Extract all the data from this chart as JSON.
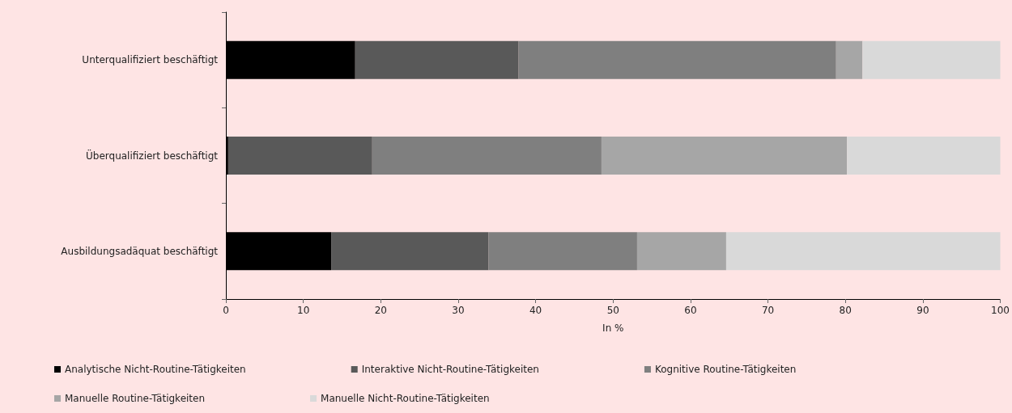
{
  "chart_data": {
    "type": "bar",
    "orientation": "horizontal",
    "stacked": true,
    "xlabel": "In %",
    "categories": [
      "Unterqualifiziert beschäftigt",
      "Überqualifiziert beschäftigt",
      "Ausbildungsadäquat beschäftigt"
    ],
    "series": [
      {
        "name": "Analytische Nicht-Routine-Tätigkeiten",
        "color": "#000000",
        "values": [
          16.7,
          0.3,
          13.6
        ]
      },
      {
        "name": "Interaktive Nicht-Routine-Tätigkeiten",
        "color": "#595959",
        "values": [
          21.1,
          18.6,
          20.3
        ]
      },
      {
        "name": "Kognitive Routine-Tätigkeiten",
        "color": "#7f7f7f",
        "values": [
          41.0,
          29.6,
          19.2
        ]
      },
      {
        "name": "Manuelle Routine-Tätigkeiten",
        "color": "#a6a6a6",
        "values": [
          3.4,
          31.7,
          11.5
        ]
      },
      {
        "name": "Manuelle Nicht-Routine-Tätigkeiten",
        "color": "#d9d9d9",
        "values": [
          17.8,
          19.8,
          35.4
        ]
      }
    ],
    "xlim": [
      0,
      100
    ],
    "xticks": [
      0,
      10,
      20,
      30,
      40,
      50,
      60,
      70,
      80,
      90,
      100
    ],
    "grid": false,
    "legend": "bottom"
  }
}
